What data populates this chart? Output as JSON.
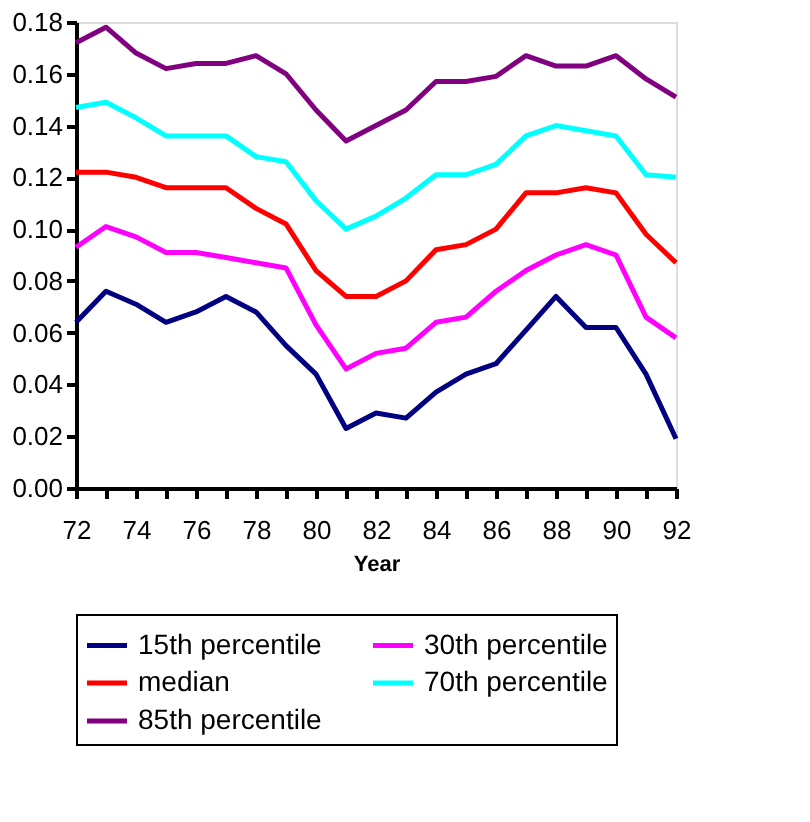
{
  "chart_data": {
    "type": "line",
    "xlabel": "Year",
    "x": [
      72,
      73,
      74,
      75,
      76,
      77,
      78,
      79,
      80,
      81,
      82,
      83,
      84,
      85,
      86,
      87,
      88,
      89,
      90,
      91,
      92
    ],
    "series": [
      {
        "name": "15th percentile",
        "color": "#000080",
        "values": [
          0.064,
          0.076,
          0.071,
          0.064,
          0.068,
          0.074,
          0.068,
          0.055,
          0.044,
          0.023,
          0.029,
          0.027,
          0.037,
          0.044,
          0.048,
          0.061,
          0.074,
          0.062,
          0.062,
          0.044,
          0.019
        ]
      },
      {
        "name": "30th percentile",
        "color": "#ff00ff",
        "values": [
          0.093,
          0.101,
          0.097,
          0.091,
          0.091,
          0.089,
          0.087,
          0.085,
          0.063,
          0.046,
          0.052,
          0.054,
          0.064,
          0.066,
          0.076,
          0.084,
          0.09,
          0.094,
          0.09,
          0.066,
          0.058
        ]
      },
      {
        "name": "median",
        "color": "#ff0000",
        "values": [
          0.122,
          0.122,
          0.12,
          0.116,
          0.116,
          0.116,
          0.108,
          0.102,
          0.084,
          0.074,
          0.074,
          0.08,
          0.092,
          0.094,
          0.1,
          0.114,
          0.114,
          0.116,
          0.114,
          0.098,
          0.087
        ]
      },
      {
        "name": "70th percentile",
        "color": "#00ffff",
        "values": [
          0.147,
          0.149,
          0.143,
          0.136,
          0.136,
          0.136,
          0.128,
          0.126,
          0.111,
          0.1,
          0.105,
          0.112,
          0.121,
          0.121,
          0.125,
          0.136,
          0.14,
          0.138,
          0.136,
          0.121,
          0.12
        ]
      },
      {
        "name": "85th percentile",
        "color": "#800080",
        "values": [
          0.172,
          0.178,
          0.168,
          0.162,
          0.164,
          0.164,
          0.167,
          0.16,
          0.146,
          0.134,
          0.14,
          0.146,
          0.157,
          0.157,
          0.159,
          0.167,
          0.163,
          0.163,
          0.167,
          0.158,
          0.151
        ]
      }
    ],
    "xlim": [
      72,
      92
    ],
    "xticks": [
      72,
      {
        "value": 73,
        "label": null
      },
      74,
      {
        "value": 75,
        "label": null
      },
      76,
      {
        "value": 77,
        "label": null
      },
      78,
      {
        "value": 79,
        "label": null
      },
      80,
      {
        "value": 81,
        "label": null
      },
      82,
      {
        "value": 83,
        "label": null
      },
      84,
      {
        "value": 85,
        "label": null
      },
      86,
      {
        "value": 87,
        "label": null
      },
      88,
      {
        "value": 89,
        "label": null
      },
      90,
      {
        "value": 91,
        "label": null
      },
      92
    ],
    "ylim": [
      0,
      0.18
    ],
    "yticks": [
      {
        "value": 0,
        "label": "0.00"
      },
      {
        "value": 0.02,
        "label": "0.02"
      },
      {
        "value": 0.04,
        "label": "0.04"
      },
      {
        "value": 0.06,
        "label": "0.06"
      },
      {
        "value": 0.08,
        "label": "0.08"
      },
      {
        "value": 0.1,
        "label": "0.10"
      },
      {
        "value": 0.12,
        "label": "0.12"
      },
      {
        "value": 0.14,
        "label": "0.14"
      },
      {
        "value": 0.16,
        "label": "0.16"
      },
      {
        "value": 0.18,
        "label": "0.18"
      }
    ],
    "grid": false,
    "legend": "bottom",
    "marker": "none",
    "line_style": "solid"
  }
}
